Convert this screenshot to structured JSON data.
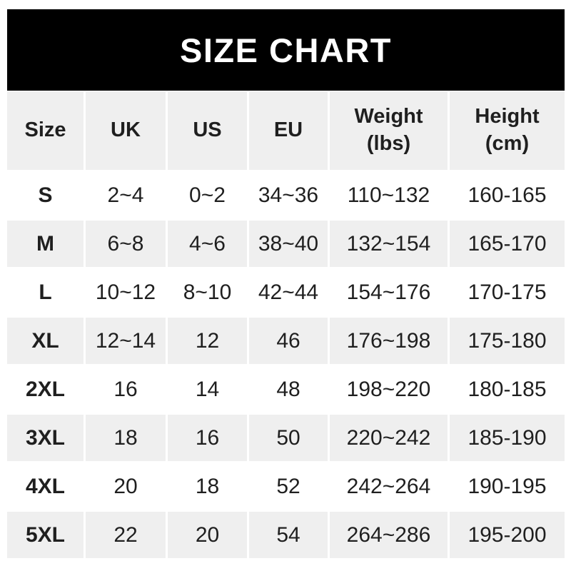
{
  "title": "SIZE CHART",
  "colors": {
    "title-bar-bg": "#000000",
    "title-text": "#ffffff",
    "cell-gray": "#efefef",
    "text": "#1f1f1f",
    "page-bg": "#ffffff"
  },
  "table": {
    "header_lines": [
      [
        "Size"
      ],
      [
        "UK"
      ],
      [
        "US"
      ],
      [
        "EU"
      ],
      [
        "Weight",
        "(lbs)"
      ],
      [
        "Height",
        "(cm)"
      ]
    ]
  },
  "chart_data": {
    "type": "table",
    "title": "SIZE CHART",
    "columns": [
      "Size",
      "UK",
      "US",
      "EU",
      "Weight (lbs)",
      "Height (cm)"
    ],
    "rows": [
      [
        "S",
        "2~4",
        "0~2",
        "34~36",
        "110~132",
        "160-165"
      ],
      [
        "M",
        "6~8",
        "4~6",
        "38~40",
        "132~154",
        "165-170"
      ],
      [
        "L",
        "10~12",
        "8~10",
        "42~44",
        "154~176",
        "170-175"
      ],
      [
        "XL",
        "12~14",
        "12",
        "46",
        "176~198",
        "175-180"
      ],
      [
        "2XL",
        "16",
        "14",
        "48",
        "198~220",
        "180-185"
      ],
      [
        "3XL",
        "18",
        "16",
        "50",
        "220~242",
        "185-190"
      ],
      [
        "4XL",
        "20",
        "18",
        "52",
        "242~264",
        "190-195"
      ],
      [
        "5XL",
        "22",
        "20",
        "54",
        "264~286",
        "195-200"
      ]
    ]
  }
}
